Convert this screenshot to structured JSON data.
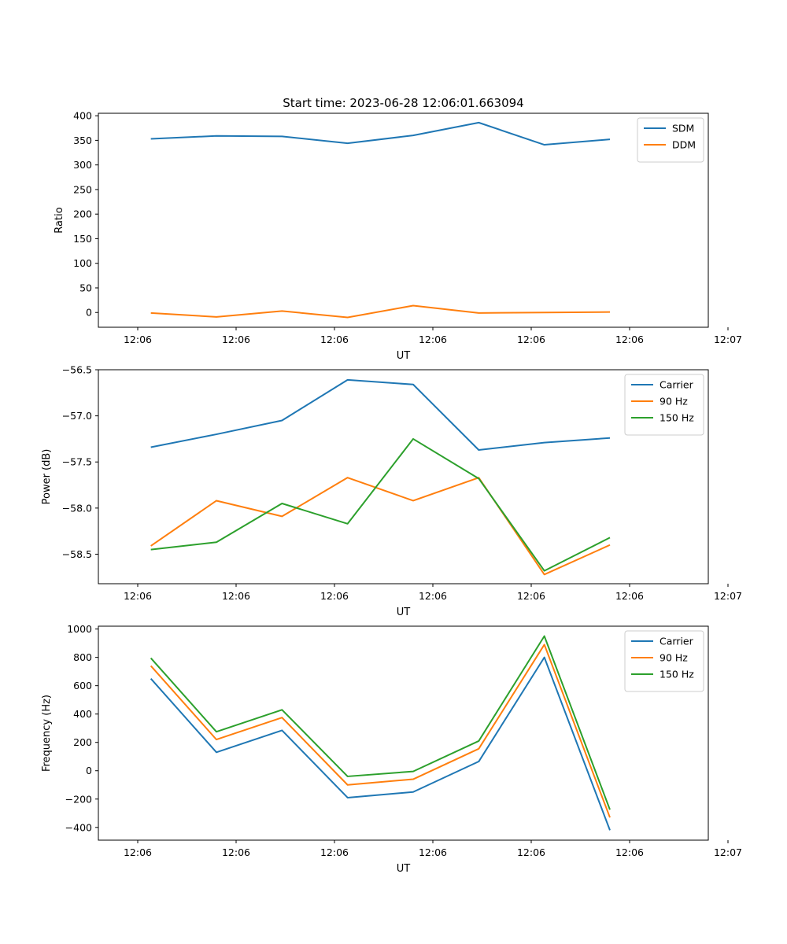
{
  "title": "Start time: 2023-06-28 12:06:01.663094",
  "chart_data": [
    {
      "type": "line",
      "x": [
        1,
        2,
        3,
        4,
        5,
        6,
        7,
        8
      ],
      "xlim": [
        0.2,
        9.5
      ],
      "xticks": [
        0.8,
        2.3,
        3.8,
        5.3,
        6.8,
        8.3,
        9.8
      ],
      "xticklabels": [
        "12:06",
        "12:06",
        "12:06",
        "12:06",
        "12:06",
        "12:06",
        "12:07"
      ],
      "xlabel": "UT",
      "ylabel": "Ratio",
      "ylim": [
        -30,
        405
      ],
      "yticks": [
        0,
        50,
        100,
        150,
        200,
        250,
        300,
        350,
        400
      ],
      "yticklabels": [
        "0",
        "50",
        "100",
        "150",
        "200",
        "250",
        "300",
        "350",
        "400"
      ],
      "legend_position": "top-right",
      "series": [
        {
          "name": "SDM",
          "color": "#1f77b4",
          "values": [
            353,
            359,
            358,
            344,
            360,
            386,
            341,
            352
          ]
        },
        {
          "name": "DDM",
          "color": "#ff7f0e",
          "values": [
            -1,
            -9,
            3,
            -10,
            14,
            -1,
            0,
            1
          ]
        }
      ]
    },
    {
      "type": "line",
      "x": [
        1,
        2,
        3,
        4,
        5,
        6,
        7,
        8
      ],
      "xlim": [
        0.2,
        9.5
      ],
      "xticks": [
        0.8,
        2.3,
        3.8,
        5.3,
        6.8,
        8.3,
        9.8
      ],
      "xticklabels": [
        "12:06",
        "12:06",
        "12:06",
        "12:06",
        "12:06",
        "12:06",
        "12:07"
      ],
      "xlabel": "UT",
      "ylabel": "Power (dB)",
      "ylim": [
        -58.82,
        -56.5
      ],
      "yticks": [
        -56.5,
        -57.0,
        -57.5,
        -58.0,
        -58.5
      ],
      "yticklabels": [
        "−56.5",
        "−57.0",
        "−57.5",
        "−58.0",
        "−58.5"
      ],
      "legend_position": "top-right",
      "series": [
        {
          "name": "Carrier",
          "color": "#1f77b4",
          "values": [
            -57.34,
            -57.2,
            -57.05,
            -56.61,
            -56.66,
            -57.37,
            -57.29,
            -57.24
          ]
        },
        {
          "name": "90 Hz",
          "color": "#ff7f0e",
          "values": [
            -58.41,
            -57.92,
            -58.09,
            -57.67,
            -57.92,
            -57.67,
            -58.72,
            -58.4
          ]
        },
        {
          "name": "150 Hz",
          "color": "#2ca02c",
          "values": [
            -58.45,
            -58.37,
            -57.95,
            -58.17,
            -57.25,
            -57.68,
            -58.68,
            -58.32
          ]
        }
      ]
    },
    {
      "type": "line",
      "x": [
        1,
        2,
        3,
        4,
        5,
        6,
        7,
        8
      ],
      "xlim": [
        0.2,
        9.5
      ],
      "xticks": [
        0.8,
        2.3,
        3.8,
        5.3,
        6.8,
        8.3,
        9.8
      ],
      "xticklabels": [
        "12:06",
        "12:06",
        "12:06",
        "12:06",
        "12:06",
        "12:06",
        "12:07"
      ],
      "xlabel": "UT",
      "ylabel": "Frequency (Hz)",
      "ylim": [
        -490,
        1020
      ],
      "yticks": [
        1000,
        800,
        600,
        400,
        200,
        0,
        -200,
        -400
      ],
      "yticklabels": [
        "1000",
        "800",
        "600",
        "400",
        "200",
        "0",
        "−200",
        "−400"
      ],
      "legend_position": "top-right",
      "series": [
        {
          "name": "Carrier",
          "color": "#1f77b4",
          "values": [
            650,
            130,
            285,
            -190,
            -150,
            65,
            800,
            -420
          ]
        },
        {
          "name": "90 Hz",
          "color": "#ff7f0e",
          "values": [
            740,
            220,
            375,
            -100,
            -60,
            155,
            890,
            -330
          ]
        },
        {
          "name": "150 Hz",
          "color": "#2ca02c",
          "values": [
            795,
            275,
            430,
            -40,
            -5,
            210,
            950,
            -275
          ]
        }
      ]
    }
  ]
}
